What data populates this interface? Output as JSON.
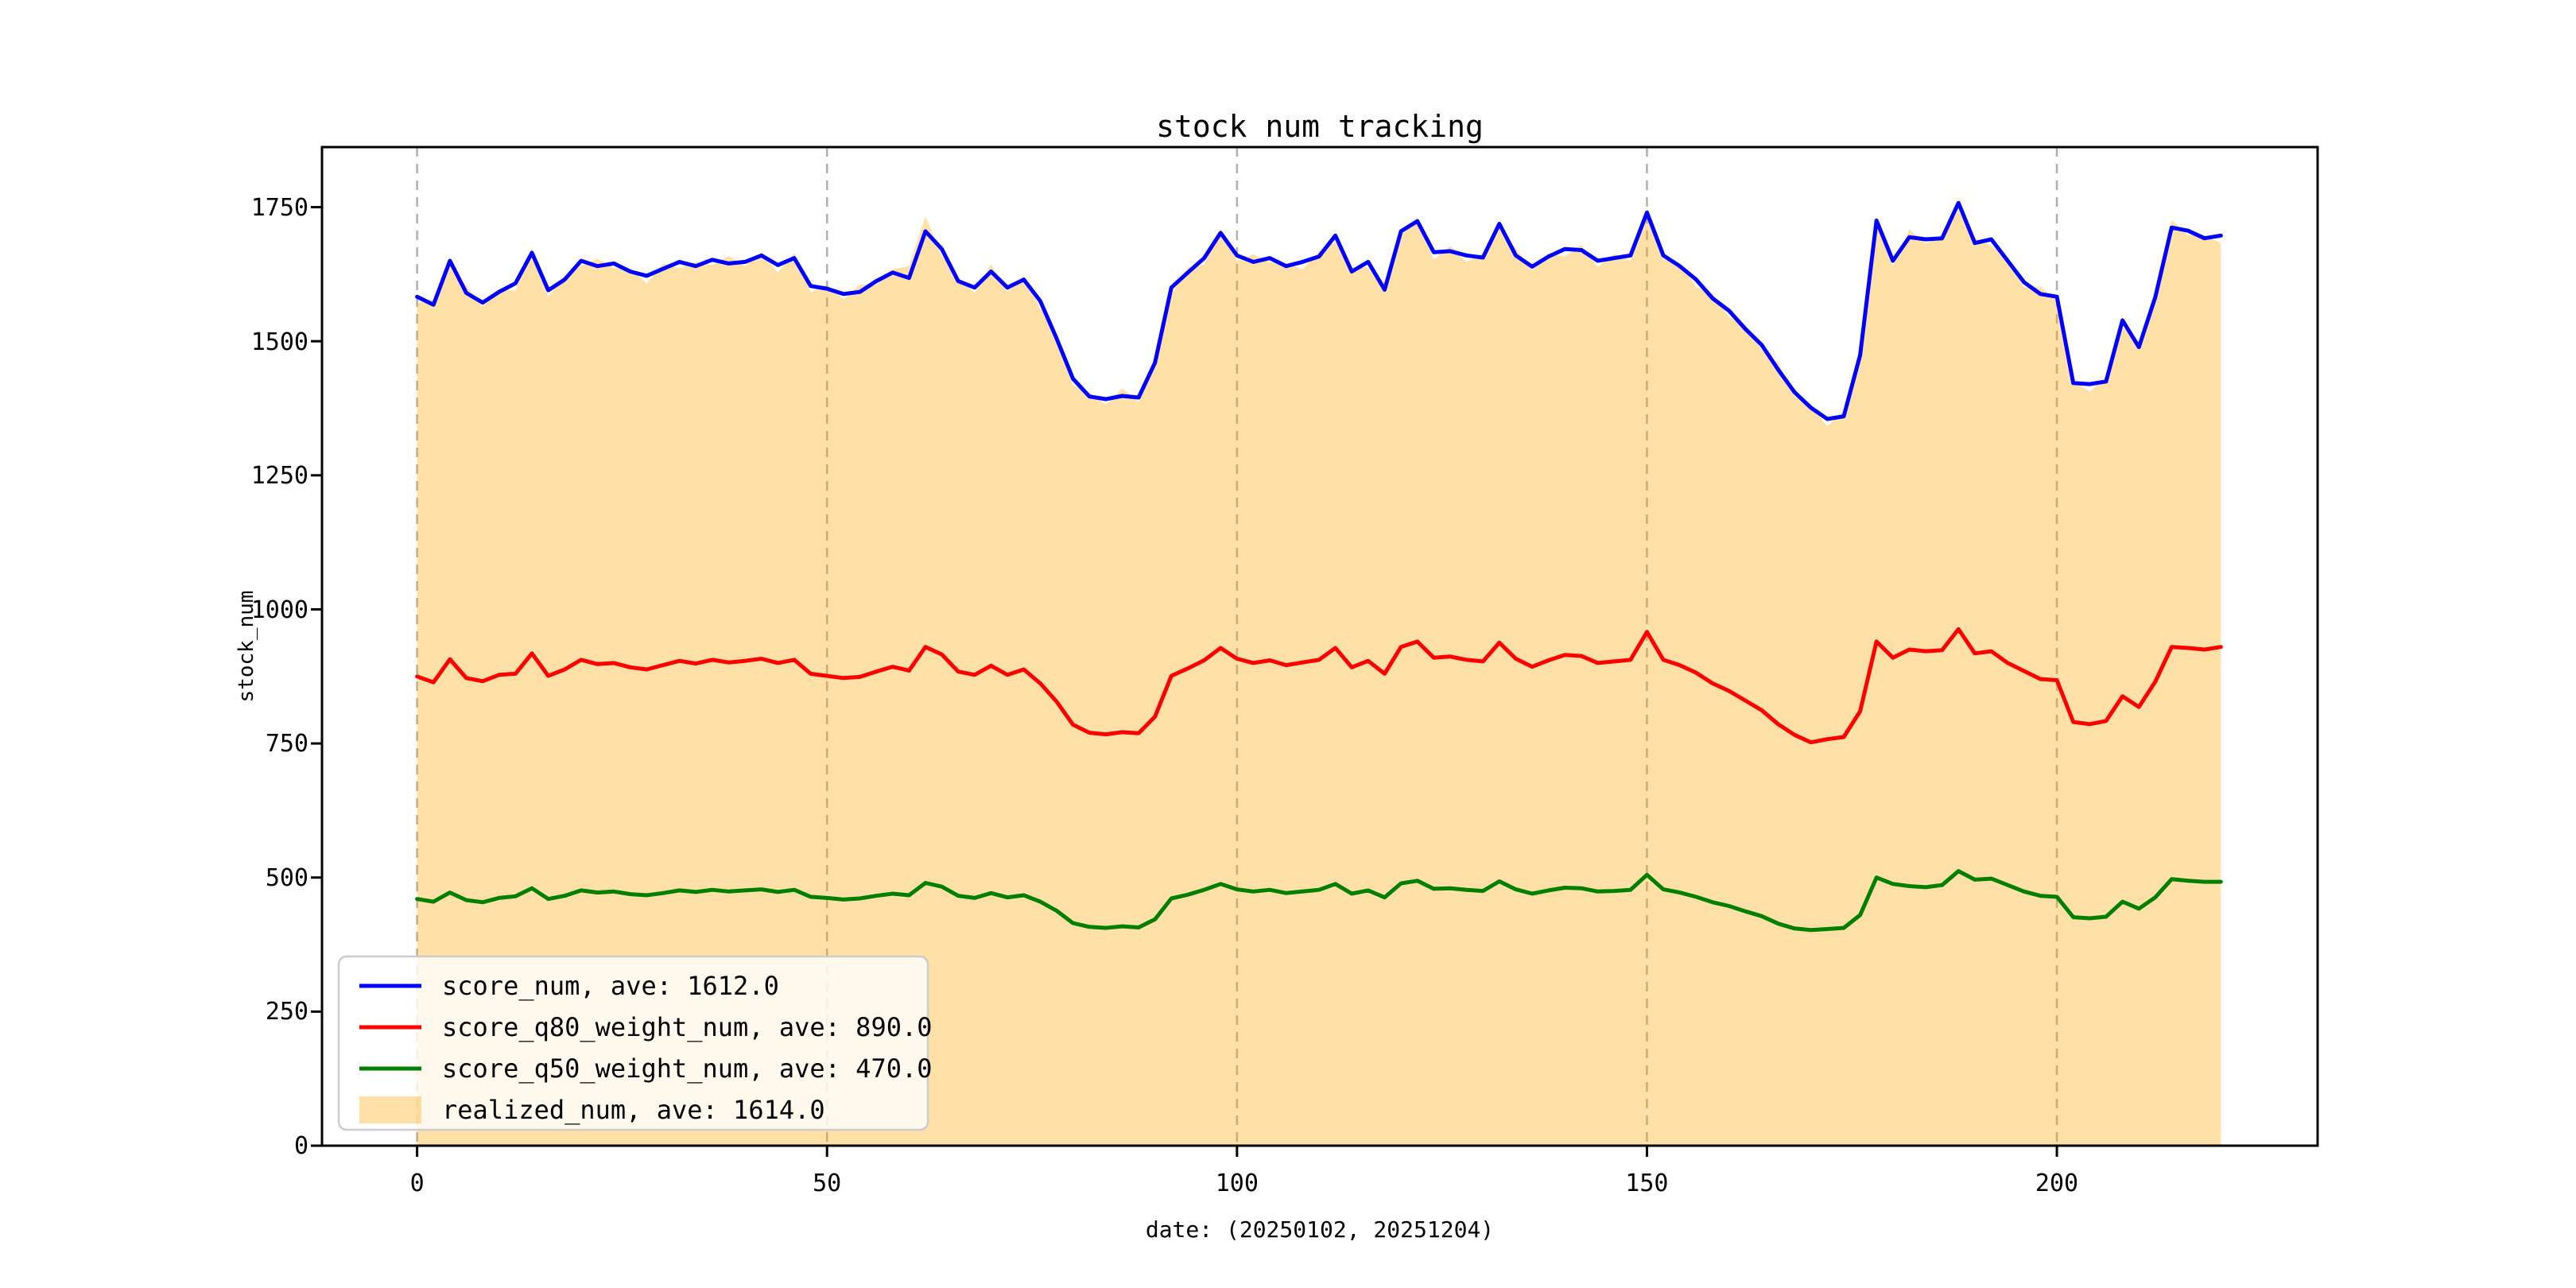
{
  "title": "stock num tracking",
  "axes": {
    "xlabel": "date: (20250102, 20251204)",
    "ylabel": "stock_num",
    "x_ticks": [
      0,
      50,
      100,
      150,
      200
    ],
    "y_ticks": [
      0,
      250,
      500,
      750,
      1000,
      1250,
      1500,
      1750
    ]
  },
  "colors": {
    "score_num": "#0000ff",
    "score_q80_weight_num": "#ff0000",
    "score_q50_weight_num": "#008000",
    "realized_num": "#ffa500",
    "grid": "#b0b0b0",
    "frame": "#000000",
    "legend_border": "#cccccc"
  },
  "legend": {
    "items": [
      {
        "label": "score_num, ave: 1612.0",
        "color": "#0000ff",
        "type": "line"
      },
      {
        "label": "score_q80_weight_num, ave: 890.0",
        "color": "#ff0000",
        "type": "line"
      },
      {
        "label": "score_q50_weight_num, ave: 470.0",
        "color": "#008000",
        "type": "line"
      },
      {
        "label": "realized_num, ave: 1614.0",
        "color": "#ffa500",
        "type": "patch"
      }
    ]
  },
  "chart_data": {
    "type": "line",
    "title": "stock num tracking",
    "xlabel": "date: (20250102, 20251204)",
    "ylabel": "stock_num",
    "xlim": [
      -11.6,
      231.8
    ],
    "ylim": [
      0,
      1862
    ],
    "x_ticks": [
      0,
      50,
      100,
      150,
      200
    ],
    "y_ticks": [
      0,
      250,
      500,
      750,
      1000,
      1250,
      1500,
      1750
    ],
    "grid": "vertical dashed gridlines at x ticks only",
    "legend_position": "lower left",
    "x_start": 0,
    "x_step": 2,
    "series": [
      {
        "name": "score_num, ave: 1612.0",
        "color": "#0000ff",
        "style": "line",
        "values": [
          1583,
          1568,
          1650,
          1590,
          1572,
          1592,
          1608,
          1665,
          1595,
          1615,
          1650,
          1640,
          1645,
          1630,
          1622,
          1635,
          1648,
          1640,
          1652,
          1645,
          1648,
          1660,
          1642,
          1655,
          1603,
          1598,
          1588,
          1592,
          1612,
          1628,
          1618,
          1705,
          1672,
          1612,
          1600,
          1630,
          1600,
          1615,
          1575,
          1505,
          1430,
          1397,
          1392,
          1398,
          1395,
          1460,
          1600,
          1628,
          1655,
          1702,
          1660,
          1648,
          1655,
          1640,
          1648,
          1658,
          1697,
          1630,
          1648,
          1596,
          1705,
          1724,
          1666,
          1668,
          1660,
          1656,
          1719,
          1660,
          1639,
          1658,
          1672,
          1670,
          1650,
          1655,
          1660,
          1740,
          1660,
          1640,
          1615,
          1580,
          1557,
          1523,
          1493,
          1447,
          1405,
          1376,
          1355,
          1360,
          1474,
          1725,
          1650,
          1694,
          1690,
          1692,
          1758,
          1683,
          1690,
          1650,
          1610,
          1588,
          1583,
          1422,
          1420,
          1425,
          1539,
          1489,
          1582,
          1712,
          1706,
          1692,
          1697
        ]
      },
      {
        "name": "score_q80_weight_num, ave: 890.0",
        "color": "#ff0000",
        "style": "line",
        "values": [
          875,
          864,
          907,
          872,
          866,
          878,
          880,
          918,
          876,
          888,
          906,
          898,
          900,
          892,
          888,
          896,
          904,
          899,
          906,
          901,
          904,
          908,
          900,
          906,
          880,
          876,
          872,
          874,
          884,
          893,
          886,
          930,
          916,
          884,
          878,
          895,
          878,
          888,
          862,
          828,
          785,
          770,
          767,
          771,
          769,
          800,
          876,
          890,
          905,
          928,
          908,
          900,
          905,
          896,
          901,
          906,
          928,
          892,
          904,
          880,
          930,
          940,
          910,
          912,
          906,
          903,
          938,
          908,
          893,
          905,
          915,
          913,
          900,
          903,
          906,
          958,
          906,
          896,
          882,
          862,
          848,
          830,
          812,
          786,
          766,
          752,
          758,
          762,
          810,
          940,
          910,
          925,
          922,
          924,
          963,
          918,
          922,
          900,
          885,
          870,
          868,
          790,
          786,
          792,
          838,
          818,
          865,
          930,
          928,
          925,
          930
        ]
      },
      {
        "name": "score_q50_weight_num, ave: 470.0",
        "color": "#008000",
        "style": "line",
        "values": [
          460,
          455,
          472,
          458,
          454,
          462,
          465,
          480,
          460,
          466,
          476,
          472,
          474,
          469,
          467,
          471,
          476,
          473,
          477,
          474,
          476,
          478,
          473,
          477,
          464,
          462,
          459,
          461,
          466,
          470,
          467,
          490,
          483,
          466,
          462,
          471,
          463,
          467,
          455,
          438,
          415,
          408,
          406,
          409,
          407,
          422,
          461,
          468,
          477,
          488,
          478,
          474,
          477,
          471,
          474,
          477,
          488,
          470,
          476,
          463,
          489,
          494,
          479,
          480,
          477,
          475,
          493,
          478,
          470,
          476,
          481,
          480,
          474,
          475,
          477,
          505,
          478,
          472,
          464,
          454,
          447,
          437,
          428,
          414,
          405,
          402,
          404,
          406,
          430,
          500,
          488,
          484,
          482,
          486,
          512,
          496,
          498,
          486,
          474,
          466,
          464,
          426,
          424,
          427,
          455,
          442,
          463,
          497,
          494,
          492,
          492
        ]
      },
      {
        "name": "realized_num, ave: 1614.0",
        "color": "#ffa500",
        "style": "fill",
        "fill_alpha": 0.35,
        "values": [
          1571,
          1576,
          1640,
          1604,
          1564,
          1598,
          1594,
          1675,
          1583,
          1623,
          1640,
          1654,
          1637,
          1636,
          1608,
          1645,
          1636,
          1648,
          1642,
          1659,
          1640,
          1666,
          1628,
          1665,
          1591,
          1606,
          1578,
          1606,
          1604,
          1634,
          1640,
          1733,
          1660,
          1620,
          1590,
          1644,
          1592,
          1621,
          1561,
          1515,
          1418,
          1405,
          1382,
          1412,
          1387,
          1466,
          1586,
          1638,
          1643,
          1710,
          1650,
          1662,
          1647,
          1646,
          1634,
          1668,
          1685,
          1638,
          1638,
          1610,
          1697,
          1730,
          1652,
          1678,
          1648,
          1664,
          1709,
          1674,
          1631,
          1664,
          1658,
          1680,
          1638,
          1663,
          1650,
          1746,
          1652,
          1646,
          1601,
          1590,
          1545,
          1531,
          1483,
          1461,
          1397,
          1382,
          1341,
          1370,
          1462,
          1733,
          1640,
          1708,
          1682,
          1698,
          1744,
          1693,
          1678,
          1658,
          1600,
          1602,
          1575,
          1428,
          1406,
          1435,
          1527,
          1497,
          1572,
          1726,
          1698,
          1698,
          1683
        ]
      }
    ]
  }
}
